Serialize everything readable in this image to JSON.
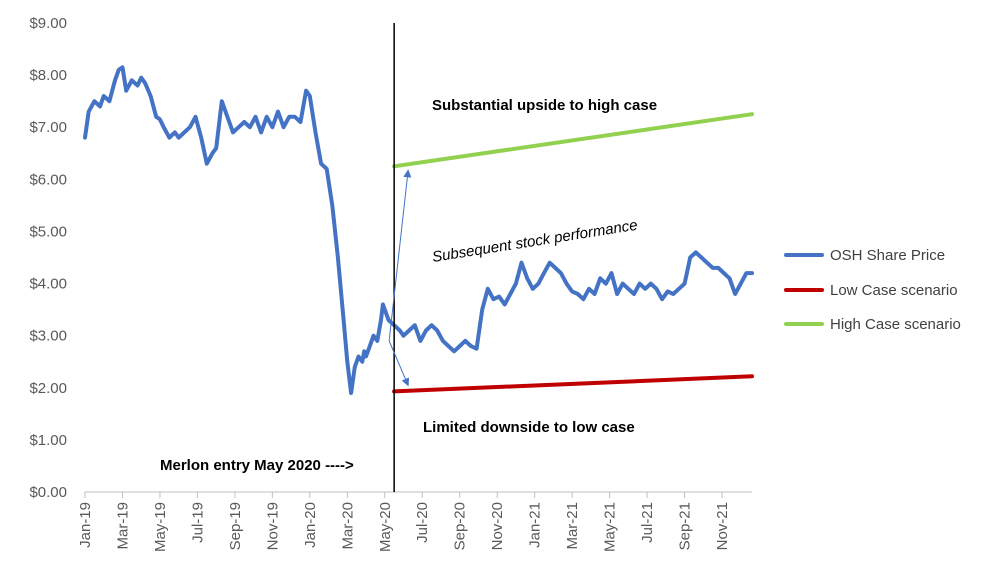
{
  "chart_data": {
    "type": "line",
    "title": "",
    "xlabel": "",
    "ylabel": "",
    "ylim": [
      0,
      9
    ],
    "y_ticks": [
      "$0.00",
      "$1.00",
      "$2.00",
      "$3.00",
      "$4.00",
      "$5.00",
      "$6.00",
      "$7.00",
      "$8.00",
      "$9.00"
    ],
    "x_ticks": [
      "Jan-19",
      "Mar-19",
      "May-19",
      "Jul-19",
      "Sep-19",
      "Nov-19",
      "Jan-20",
      "Mar-20",
      "May-20",
      "Jul-20",
      "Sep-20",
      "Nov-20",
      "Jan-21",
      "Mar-21",
      "May-21",
      "Jul-21",
      "Sep-21",
      "Nov-21"
    ],
    "x_unit": "months since Jan-2019",
    "series": [
      {
        "name": "OSH Share Price",
        "color": "#4472C4",
        "x": [
          0,
          0.2,
          0.5,
          0.8,
          1.0,
          1.3,
          1.6,
          1.8,
          2.0,
          2.2,
          2.5,
          2.8,
          3.0,
          3.2,
          3.5,
          3.8,
          4.0,
          4.2,
          4.5,
          4.8,
          5.0,
          5.3,
          5.6,
          5.9,
          6.2,
          6.5,
          6.8,
          7.0,
          7.3,
          7.6,
          7.9,
          8.2,
          8.5,
          8.8,
          9.1,
          9.4,
          9.7,
          10.0,
          10.3,
          10.6,
          10.9,
          11.2,
          11.5,
          11.8,
          12.0,
          12.3,
          12.6,
          12.9,
          13.2,
          13.5,
          13.8,
          14.0,
          14.2,
          14.4,
          14.6,
          14.8,
          14.9,
          15.0,
          15.2,
          15.4,
          15.6,
          15.8,
          15.9,
          16.0,
          16.2,
          16.5,
          16.8,
          17.0,
          17.3,
          17.6,
          17.9,
          18.2,
          18.5,
          18.8,
          19.1,
          19.4,
          19.7,
          20.0,
          20.3,
          20.6,
          20.9,
          21.2,
          21.5,
          21.8,
          22.1,
          22.4,
          22.7,
          23.0,
          23.3,
          23.6,
          23.9,
          24.2,
          24.5,
          24.8,
          25.1,
          25.4,
          25.7,
          26.0,
          26.3,
          26.6,
          26.9,
          27.2,
          27.5,
          27.8,
          28.1,
          28.4,
          28.7,
          29.0,
          29.3,
          29.6,
          29.9,
          30.2,
          30.5,
          30.8,
          31.1,
          31.4,
          31.7,
          32.0,
          32.3,
          32.6,
          32.9,
          33.2,
          33.5,
          33.8,
          34.1,
          34.4,
          34.7,
          35.0,
          35.3,
          35.6
        ],
        "values": [
          6.8,
          7.3,
          7.5,
          7.4,
          7.6,
          7.5,
          7.9,
          8.1,
          8.15,
          7.7,
          7.9,
          7.8,
          7.95,
          7.85,
          7.6,
          7.2,
          7.15,
          7.0,
          6.8,
          6.9,
          6.8,
          6.9,
          7.0,
          7.2,
          6.8,
          6.3,
          6.5,
          6.6,
          7.5,
          7.2,
          6.9,
          7.0,
          7.1,
          7.0,
          7.2,
          6.9,
          7.2,
          7.0,
          7.3,
          7.0,
          7.2,
          7.2,
          7.1,
          7.7,
          7.6,
          6.9,
          6.3,
          6.2,
          5.5,
          4.5,
          3.3,
          2.5,
          1.9,
          2.4,
          2.6,
          2.5,
          2.7,
          2.6,
          2.8,
          3.0,
          2.9,
          3.3,
          3.6,
          3.5,
          3.3,
          3.2,
          3.1,
          3.0,
          3.1,
          3.2,
          2.9,
          3.1,
          3.2,
          3.1,
          2.9,
          2.8,
          2.7,
          2.8,
          2.9,
          2.8,
          2.75,
          3.5,
          3.9,
          3.7,
          3.75,
          3.6,
          3.8,
          4.0,
          4.4,
          4.1,
          3.9,
          4.0,
          4.2,
          4.4,
          4.3,
          4.2,
          4.0,
          3.85,
          3.8,
          3.7,
          3.9,
          3.8,
          4.1,
          4.0,
          4.2,
          3.8,
          4.0,
          3.9,
          3.8,
          4.0,
          3.9,
          4.0,
          3.9,
          3.7,
          3.85,
          3.8,
          3.9,
          4.0,
          4.5,
          4.6,
          4.5,
          4.4,
          4.3,
          4.3,
          4.2,
          4.1,
          3.8,
          4.0,
          4.2,
          4.2
        ]
      },
      {
        "name": "Low Case scenario",
        "color": "#C00000",
        "x": [
          16.5,
          35.6
        ],
        "values": [
          1.93,
          2.22
        ]
      },
      {
        "name": "High Case scenario",
        "color": "#92D050",
        "x": [
          16.5,
          35.6
        ],
        "values": [
          6.25,
          7.25
        ]
      }
    ],
    "vertical_marker_x": 16.5,
    "annotations": {
      "upside": "Substantial upside to high case",
      "subsequent": "Subsequent stock performance",
      "downside": "Limited downside to low case",
      "entry": "Merlon entry May 2020 ---->"
    },
    "legend_position": "right",
    "grid": false
  }
}
